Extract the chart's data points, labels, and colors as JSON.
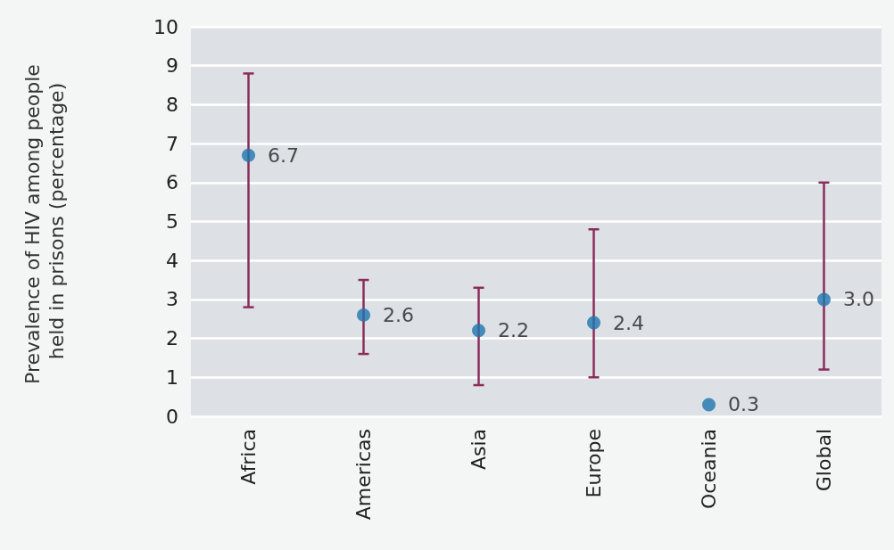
{
  "chart_data": {
    "type": "scatter",
    "ylabel": "Prevalence of HIV among people held in prisons (percentage)",
    "categories": [
      "Africa",
      "Americas",
      "Asia",
      "Europe",
      "Oceania",
      "Global"
    ],
    "values": [
      6.7,
      2.6,
      2.2,
      2.4,
      0.3,
      3.0
    ],
    "value_labels": [
      "6.7",
      "2.6",
      "2.2",
      "2.4",
      "0.3",
      "3.0"
    ],
    "color": "#1f75ae",
    "errors": [
      [
        2.8,
        8.8
      ],
      [
        1.6,
        3.5
      ],
      [
        0.8,
        3.3
      ],
      [
        1.0,
        4.8
      ],
      null,
      [
        1.2,
        6.0
      ]
    ],
    "ylim": [
      0,
      10
    ],
    "yticks": [
      0,
      1,
      2,
      3,
      4,
      5,
      6,
      7,
      8,
      9,
      10
    ],
    "grid": "y",
    "marker": "circle"
  }
}
